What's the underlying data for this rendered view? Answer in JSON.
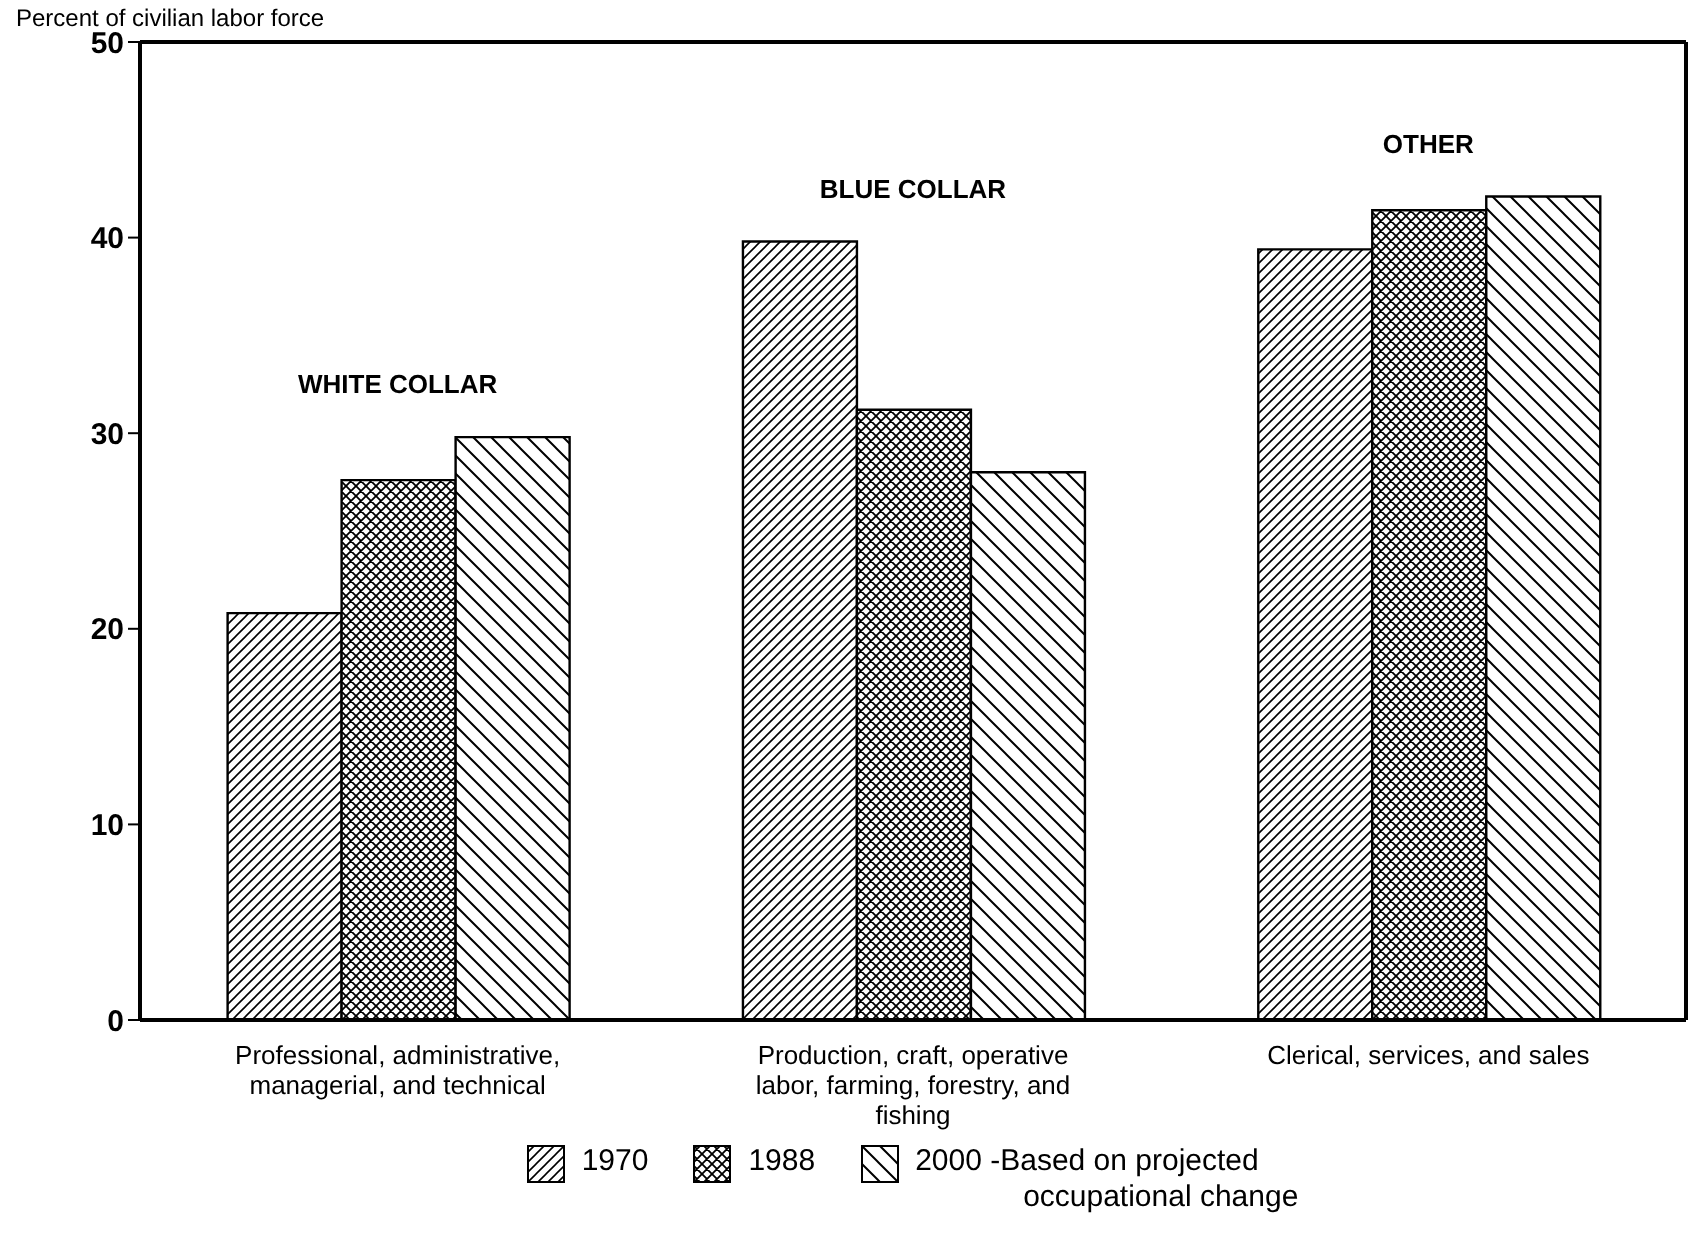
{
  "chart_data": {
    "type": "bar",
    "ylabel": "Percent of civilian labor force",
    "categories": [
      "Professional, administrative, managerial, and technical",
      "Production, craft, operative labor, farming, forestry, and fishing",
      "Clerical, services, and sales"
    ],
    "series": [
      {
        "name": "1970",
        "color": "#000000",
        "values": [
          20.8,
          39.8,
          39.4
        ]
      },
      {
        "name": "1988",
        "color": "#000000",
        "values": [
          27.6,
          31.2,
          41.4
        ]
      },
      {
        "name": "2000 -Based on projected occupational change",
        "color": "#000000",
        "values": [
          29.8,
          28.0,
          42.1
        ]
      }
    ],
    "ylim": [
      0,
      50
    ],
    "yticks": [
      0,
      10,
      20,
      30,
      40,
      50
    ],
    "grid": false,
    "legend": "bottom",
    "annotations": [
      "WHITE COLLAR",
      "BLUE COLLAR",
      "OTHER"
    ]
  }
}
